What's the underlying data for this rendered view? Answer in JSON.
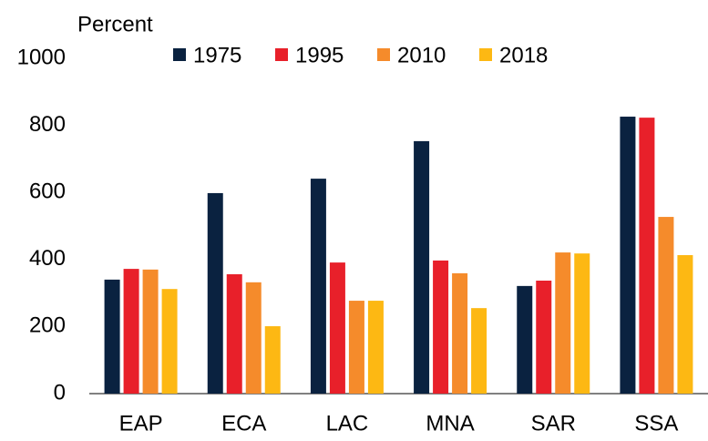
{
  "chart_data": {
    "type": "bar",
    "y_label": "Percent",
    "categories": [
      "EAP",
      "ECA",
      "LAC",
      "MNA",
      "SAR",
      "SSA"
    ],
    "series": [
      {
        "name": "1975",
        "color": "#0a2240",
        "values": [
          340,
          598,
          641,
          753,
          321,
          826
        ]
      },
      {
        "name": "1995",
        "color": "#e8202a",
        "values": [
          372,
          356,
          391,
          397,
          337,
          823
        ]
      },
      {
        "name": "2010",
        "color": "#f58b2b",
        "values": [
          370,
          332,
          277,
          359,
          421,
          527
        ]
      },
      {
        "name": "2018",
        "color": "#fdb813",
        "values": [
          312,
          201,
          277,
          255,
          418,
          413
        ]
      }
    ],
    "ylim": [
      0,
      1000
    ],
    "yticks": [
      0,
      200,
      400,
      600,
      800,
      1000
    ],
    "grid": false
  }
}
